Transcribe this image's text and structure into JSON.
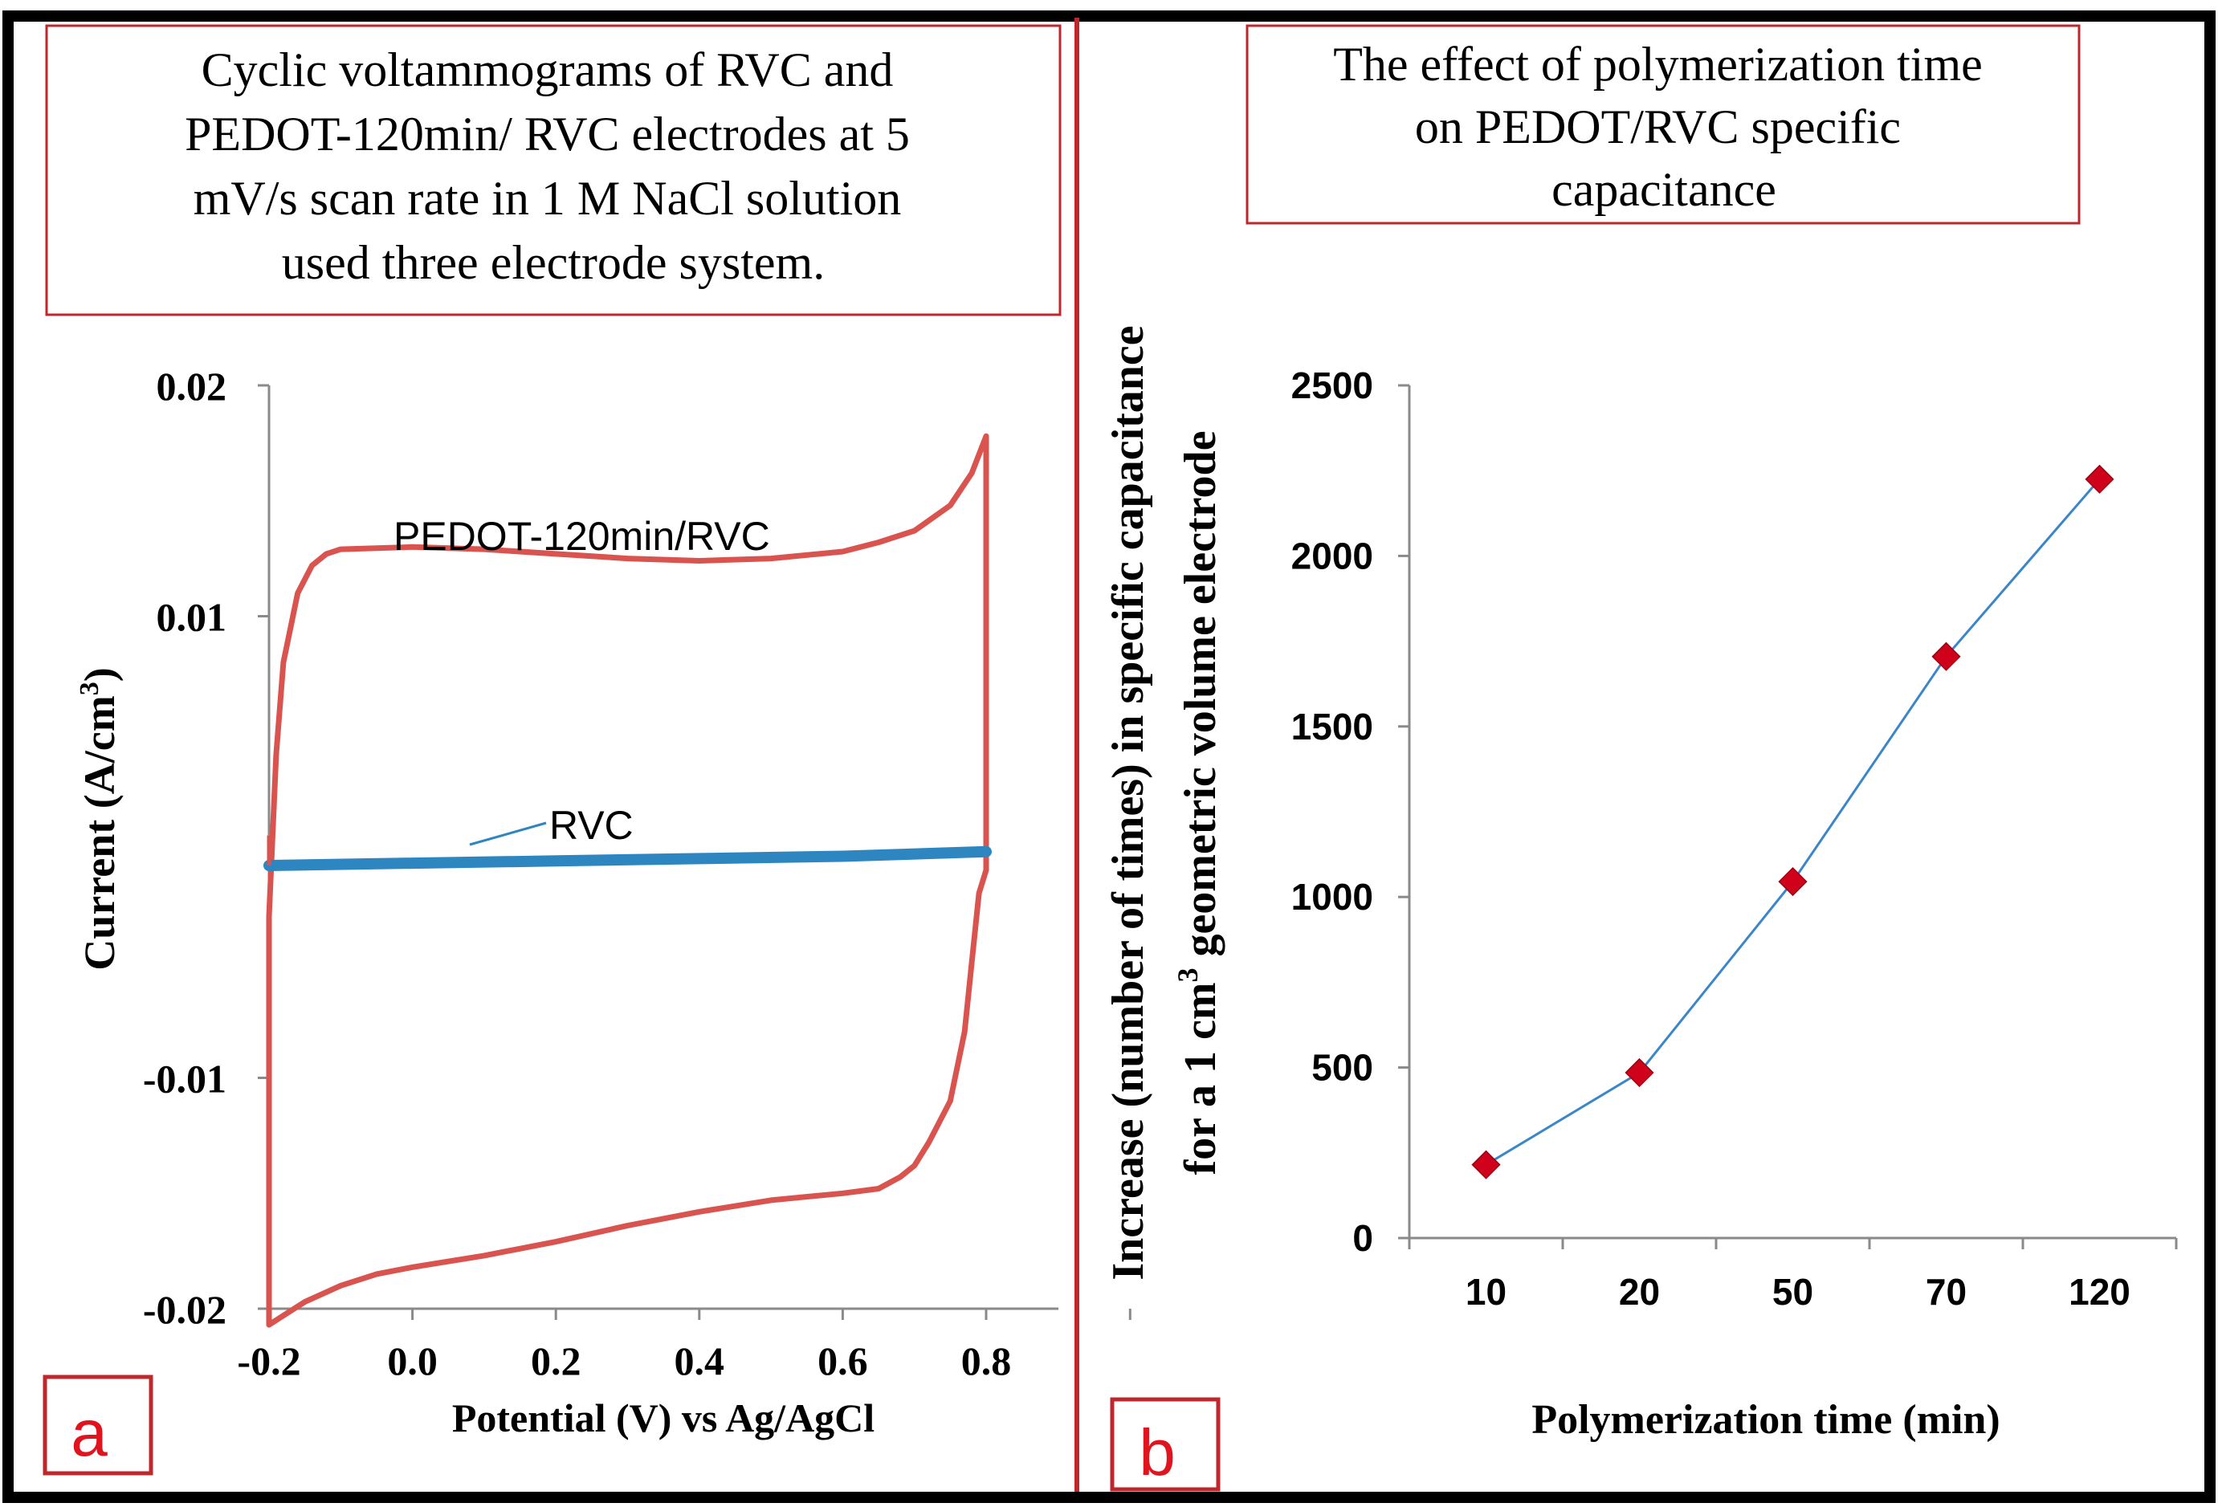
{
  "colors": {
    "frame": "#000000",
    "box_border": "#c0272d",
    "pedot_line": "#d9534f",
    "rvc_line": "#2e86c1",
    "line_b": "#3a86c8",
    "marker_b": "#d0021b",
    "panel_label": "#e0141e",
    "axis": "#8a8a8a"
  },
  "panel_a": {
    "caption_lines": [
      "Cyclic voltammograms of RVC and",
      "PEDOT-120min/ RVC electrodes at 5",
      "mV/s scan rate in 1 M NaCl solution",
      "used three electrode system."
    ],
    "label": "a"
  },
  "panel_b": {
    "caption_lines": [
      "The effect of polymerization time",
      "on PEDOT/RVC specific",
      "capacitance"
    ],
    "label": "b"
  },
  "chart_data": [
    {
      "type": "line",
      "title": "Cyclic voltammograms of RVC and PEDOT-120min/ RVC electrodes at 5 mV/s scan rate in 1 M NaCl solution used three electrode system.",
      "xlabel": "Potential (V) vs Ag/AgCl",
      "ylabel_main": "Current",
      "ylabel_unit": "(A/cm",
      "ylabel_sup": "3",
      "ylabel_close": ")",
      "xlim": [
        -0.2,
        0.9
      ],
      "ylim": [
        -0.02,
        0.02
      ],
      "x_ticks": [
        -0.2,
        0.0,
        0.2,
        0.4,
        0.6,
        0.8
      ],
      "x_tick_labels": [
        "-0.2",
        "0.0",
        "0.2",
        "0.4",
        "0.6",
        "0.8"
      ],
      "y_ticks": [
        0.02,
        0.01,
        -0.01,
        -0.02
      ],
      "y_tick_labels": [
        "0.02",
        "0.01",
        "-0.01",
        "-0.02"
      ],
      "grid": false,
      "series": [
        {
          "name": "PEDOT-120min/RVC",
          "x": [
            -0.2,
            -0.19,
            -0.18,
            -0.16,
            -0.14,
            -0.12,
            -0.1,
            0.0,
            0.1,
            0.2,
            0.3,
            0.4,
            0.5,
            0.6,
            0.65,
            0.7,
            0.75,
            0.78,
            0.8,
            0.8,
            0.79,
            0.78,
            0.77,
            0.75,
            0.72,
            0.7,
            0.68,
            0.65,
            0.6,
            0.5,
            0.4,
            0.3,
            0.2,
            0.1,
            0.0,
            -0.05,
            -0.1,
            -0.15,
            -0.18,
            -0.2,
            -0.2
          ],
          "y": [
            -0.003,
            0.004,
            0.008,
            0.011,
            0.0122,
            0.0127,
            0.0129,
            0.013,
            0.0129,
            0.0127,
            0.0125,
            0.0124,
            0.0125,
            0.0128,
            0.0132,
            0.0137,
            0.0148,
            0.0162,
            0.0178,
            -0.001,
            -0.002,
            -0.005,
            -0.008,
            -0.011,
            -0.0128,
            -0.0138,
            -0.0143,
            -0.0148,
            -0.015,
            -0.0153,
            -0.0158,
            -0.0164,
            -0.0171,
            -0.0177,
            -0.0182,
            -0.0185,
            -0.019,
            -0.0197,
            -0.0203,
            -0.0207,
            -0.003
          ]
        },
        {
          "name": "RVC",
          "x": [
            -0.2,
            0.0,
            0.2,
            0.4,
            0.6,
            0.8
          ],
          "y": [
            -0.0008,
            -0.0007,
            -0.0006,
            -0.0005,
            -0.0004,
            -0.0002
          ]
        }
      ],
      "annotations": [
        "PEDOT-120min/RVC",
        "RVC"
      ]
    },
    {
      "type": "line",
      "title": "The effect of polymerization time on PEDOT/RVC specific capacitance",
      "xlabel": "Polymerization time (min)",
      "ylabel_line1": "Increase (number of times) in specific capacitance",
      "ylabel_line2_a": "for a 1 cm",
      "ylabel_line2_sup": "3",
      "ylabel_line2_b": " geometric volume electrode",
      "categories": [
        "10",
        "20",
        "50",
        "70",
        "120"
      ],
      "values": [
        215,
        485,
        1045,
        1705,
        2225
      ],
      "ylim": [
        0,
        2500
      ],
      "y_ticks": [
        0,
        500,
        1000,
        1500,
        2000,
        2500
      ],
      "y_tick_labels": [
        "0",
        "500",
        "1000",
        "1500",
        "2000",
        "2500"
      ],
      "grid": false
    }
  ]
}
